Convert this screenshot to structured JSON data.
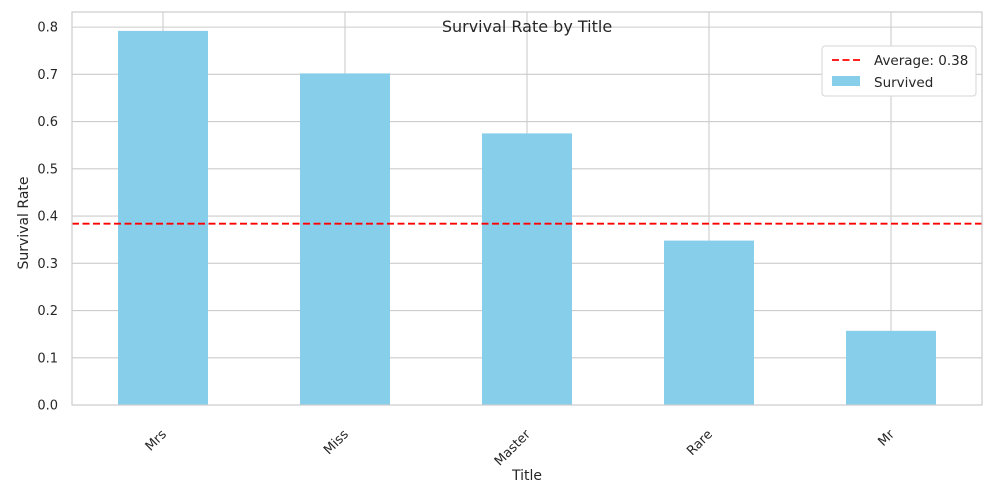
{
  "chart_data": {
    "type": "bar",
    "title": "Survival Rate by Title",
    "xlabel": "Title",
    "ylabel": "Survival Rate",
    "categories": [
      "Mrs",
      "Miss",
      "Master",
      "Rare",
      "Mr"
    ],
    "series": [
      {
        "name": "Survived",
        "values": [
          0.792,
          0.702,
          0.575,
          0.348,
          0.157
        ],
        "color": "#87ceeb"
      }
    ],
    "reference_line": {
      "label": "Average: 0.38",
      "value": 0.3838,
      "color": "#ff0000",
      "style": "dashed"
    },
    "yticks": [
      "0.0",
      "0.1",
      "0.2",
      "0.3",
      "0.4",
      "0.5",
      "0.6",
      "0.7",
      "0.8"
    ],
    "ylim": [
      0,
      0.832
    ],
    "grid": true,
    "legend_position": "top-right"
  }
}
